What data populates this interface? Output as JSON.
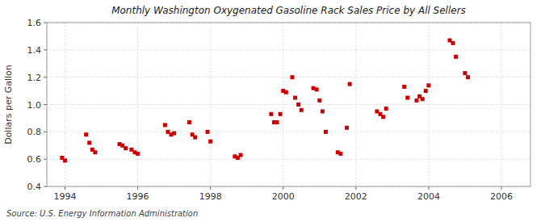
{
  "chart_data": {
    "type": "scatter",
    "title": "Monthly Washington Oxygenated Gasoline Rack Sales Price by All Sellers",
    "y_label": "Dollars per Gallon",
    "annotations": [
      "Source: U.S. Energy Information Administration"
    ],
    "color": "#cc0000",
    "marker": "square",
    "grid": true,
    "xlim": [
      1993.5,
      2006.8
    ],
    "ylim": [
      0.4,
      1.6
    ],
    "xticks": [
      1994,
      1996,
      1998,
      2000,
      2002,
      2004,
      2006
    ],
    "yticks": [
      0.4,
      0.6,
      0.8,
      {
        "value": 1.0,
        "label": "1.0"
      },
      1.2,
      1.4,
      1.6
    ],
    "x": [
      1993.92,
      1994.0,
      1994.58,
      1994.67,
      1994.75,
      1994.83,
      1995.5,
      1995.58,
      1995.67,
      1995.83,
      1995.92,
      1996.0,
      1996.75,
      1996.83,
      1996.92,
      1997.0,
      1997.42,
      1997.5,
      1997.58,
      1997.92,
      1998.0,
      1998.67,
      1998.75,
      1998.83,
      1999.67,
      1999.75,
      1999.83,
      1999.92,
      2000.0,
      2000.08,
      2000.25,
      2000.33,
      2000.42,
      2000.5,
      2000.83,
      2000.92,
      2001.0,
      2001.08,
      2001.17,
      2001.5,
      2001.58,
      2001.75,
      2001.83,
      2002.58,
      2002.67,
      2002.75,
      2002.83,
      2003.33,
      2003.42,
      2003.67,
      2003.75,
      2003.83,
      2003.92,
      2004.0,
      2004.58,
      2004.67,
      2004.75,
      2005.0,
      2005.08
    ],
    "values": [
      0.61,
      0.59,
      0.78,
      0.72,
      0.67,
      0.65,
      0.71,
      0.7,
      0.68,
      0.67,
      0.65,
      0.64,
      0.85,
      0.8,
      0.78,
      0.79,
      0.87,
      0.78,
      0.76,
      0.8,
      0.73,
      0.62,
      0.61,
      0.63,
      0.93,
      0.87,
      0.87,
      0.93,
      1.1,
      1.09,
      1.2,
      1.05,
      1.0,
      0.96,
      1.12,
      1.11,
      1.03,
      0.95,
      0.8,
      0.65,
      0.64,
      0.83,
      1.15,
      0.95,
      0.93,
      0.91,
      0.97,
      1.13,
      1.05,
      1.03,
      1.06,
      1.04,
      1.1,
      1.14,
      1.47,
      1.45,
      1.35,
      1.23,
      1.2
    ]
  }
}
